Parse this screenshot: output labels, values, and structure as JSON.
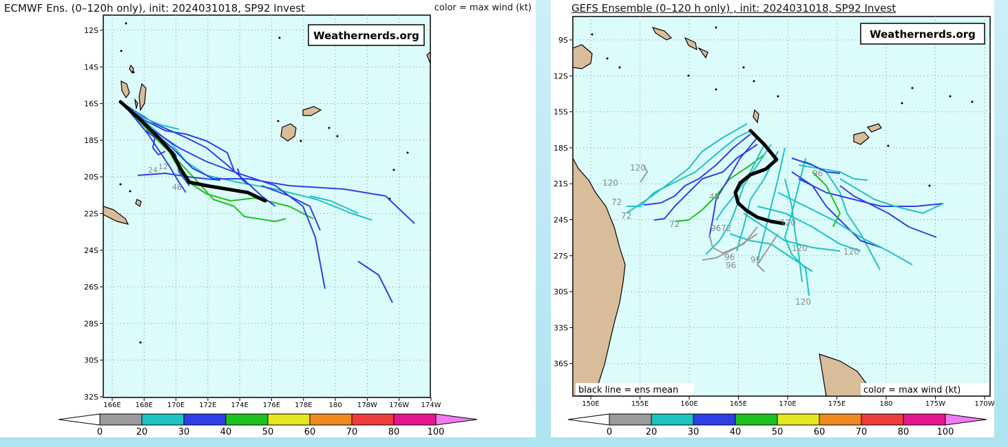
{
  "left": {
    "title": "ECMWF Ens. (0–120h only), init: 2024031018, SP92 Invest",
    "color_note": "color = max wind (kt)",
    "watermark": "Weathernerds.org",
    "lat_labels": [
      "12S",
      "14S",
      "16S",
      "18S",
      "20S",
      "22S",
      "24S",
      "26S",
      "28S",
      "30S",
      "32S"
    ],
    "lon_labels": [
      "166E",
      "168E",
      "170E",
      "172E",
      "174E",
      "176E",
      "178E",
      "180",
      "178W",
      "176W",
      "174W"
    ],
    "hour_labels": [
      "24",
      "48",
      "12"
    ]
  },
  "right": {
    "title": "GEFS Ensemble (0–120 h only) , init: 2024031018, SP92 Invest",
    "watermark": "Weathernerds.org",
    "mean_note": "black line = ens mean",
    "color_note": "color = max wind (kt)",
    "lat_labels": [
      "9S",
      "12S",
      "15S",
      "18S",
      "21S",
      "24S",
      "27S",
      "30S",
      "33S",
      "36S"
    ],
    "lon_labels": [
      "150E",
      "155E",
      "160E",
      "165E",
      "170E",
      "175E",
      "180",
      "175W",
      "170W"
    ],
    "hour_labels": [
      "120",
      "120",
      "72",
      "72",
      "48",
      "72",
      "96",
      "72",
      "96",
      "96",
      "95",
      "120",
      "120",
      "120",
      "96",
      "120"
    ]
  },
  "colorbar": {
    "ticks": [
      "0",
      "20",
      "30",
      "40",
      "50",
      "60",
      "70",
      "80",
      "100"
    ],
    "colors": [
      "#ffffff",
      "#9b9b9b",
      "#1cc3c3",
      "#2d3fe6",
      "#1ec21e",
      "#e6e61e",
      "#f08a1e",
      "#f03c3c",
      "#e6168c",
      "#f07cf0"
    ]
  },
  "colors": {
    "ocean": "#dcfbfb",
    "land": "#d9bd9a",
    "mean_track": "#000000"
  }
}
